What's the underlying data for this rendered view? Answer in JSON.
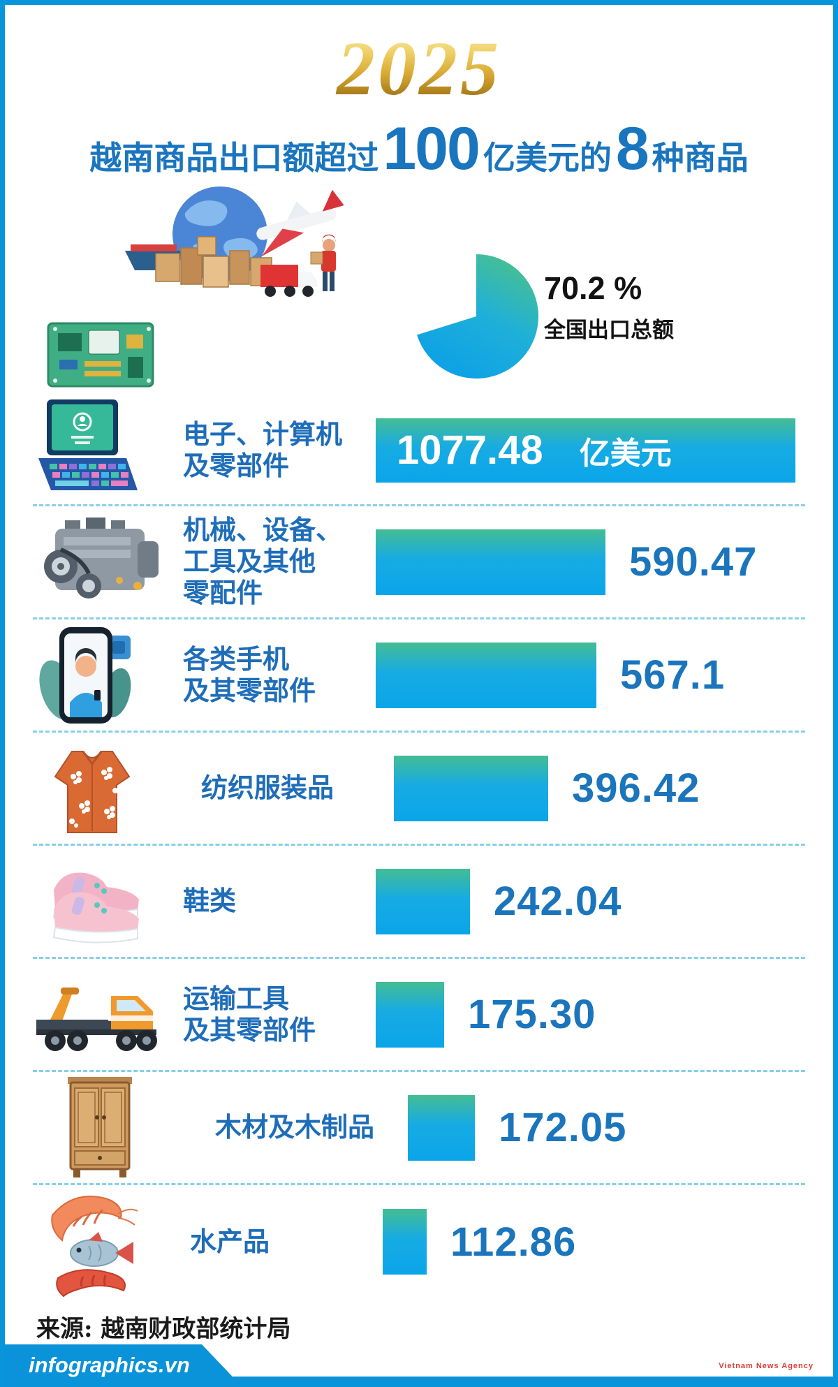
{
  "header": {
    "year": "2025",
    "title": {
      "part1": "越南商品出口额超过",
      "big_number": "100",
      "part2": "亿美元的",
      "count_number": "8",
      "part3": "种商品"
    },
    "share": {
      "percent": "70.2 %",
      "label": "全国出口总额"
    }
  },
  "unit_label": "亿美元",
  "rows": [
    {
      "label_lines": [
        "电子、计算机",
        "及零部件"
      ],
      "value": 1077.48,
      "value_text": "1077.48",
      "icon": "laptop-icon"
    },
    {
      "label_lines": [
        "机械、设备、",
        "工具及其他",
        "零配件"
      ],
      "value": 590.47,
      "value_text": "590.47",
      "icon": "engine-icon"
    },
    {
      "label_lines": [
        "各类手机",
        "及其零部件"
      ],
      "value": 567.1,
      "value_text": "567.1",
      "icon": "smartphone-icon"
    },
    {
      "label_lines": [
        "纺织服装品"
      ],
      "value": 396.42,
      "value_text": "396.42",
      "icon": "shirt-icon"
    },
    {
      "label_lines": [
        "鞋类"
      ],
      "value": 242.04,
      "value_text": "242.04",
      "icon": "sneakers-icon"
    },
    {
      "label_lines": [
        "运输工具",
        "及其零部件"
      ],
      "value": 175.3,
      "value_text": "175.30",
      "icon": "tow-truck-icon"
    },
    {
      "label_lines": [
        "木材及木制品"
      ],
      "value": 172.05,
      "value_text": "172.05",
      "icon": "wardrobe-icon"
    },
    {
      "label_lines": [
        "水产品"
      ],
      "value": 112.86,
      "value_text": "112.86",
      "icon": "seafood-icon"
    }
  ],
  "source": "来源: 越南财政部统计局",
  "footer": {
    "brand": "infographics.vn",
    "credit": "Vietnam News Agency"
  },
  "colors": {
    "accent_blue": "#1b75bc",
    "bar_teal": "#44bd93",
    "bar_blue": "#0aa5e9",
    "border_blue": "#0995dc",
    "gold": "#d9ab35"
  },
  "chart_data": {
    "type": "bar",
    "orientation": "horizontal",
    "title": "2025 越南商品出口额超过100亿美元的8种商品",
    "categories": [
      "电子、计算机及零部件",
      "机械、设备、工具及其他零配件",
      "各类手机及其零部件",
      "纺织服装品",
      "鞋类",
      "运输工具及其零部件",
      "木材及木制品",
      "水产品"
    ],
    "values": [
      1077.48,
      590.47,
      567.1,
      396.42,
      242.04,
      175.3,
      172.05,
      112.86
    ],
    "value_labels": [
      "1077.48 亿美元",
      "590.47",
      "567.1",
      "396.42",
      "242.04",
      "175.30",
      "172.05",
      "112.86"
    ],
    "unit": "亿美元",
    "xlim": [
      0,
      1100
    ],
    "grid": false,
    "legend": false,
    "annotations": [
      {
        "text": "70.2 %",
        "description": "全国出口总额"
      }
    ],
    "source": "来源: 越南财政部统计局"
  }
}
